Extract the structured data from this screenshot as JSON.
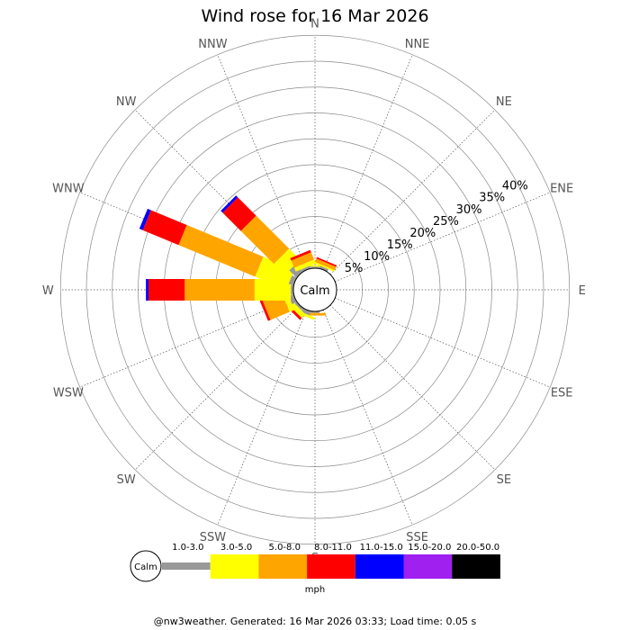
{
  "title": "Wind rose for 16 Mar 2026",
  "center_label": "Calm",
  "footer": "@nw3weather. Generated: 16 Mar 2026 03:33; Load time: 0.05 s",
  "units": "mph",
  "chart_data": {
    "type": "wind-rose",
    "title": "Wind rose for 16 Mar 2026",
    "directions": [
      "N",
      "NNE",
      "NE",
      "ENE",
      "E",
      "ESE",
      "SE",
      "SSE",
      "S",
      "SSW",
      "SW",
      "WSW",
      "W",
      "WNW",
      "NW",
      "NNW"
    ],
    "radial_ticks": [
      "5%",
      "10%",
      "15%",
      "20%",
      "25%",
      "30%",
      "35%",
      "40%"
    ],
    "radial_max_percent": 45,
    "speed_bins": [
      {
        "label": "1.0-3.0",
        "color": "#999999"
      },
      {
        "label": "3.0-5.0",
        "color": "#ffff00"
      },
      {
        "label": "5.0-8.0",
        "color": "#ffa500"
      },
      {
        "label": "8.0-11.0",
        "color": "#ff0000"
      },
      {
        "label": "11.0-15.0",
        "color": "#0000ff"
      },
      {
        "label": "15.0-20.0",
        "color": "#a020f0"
      },
      {
        "label": "20.0-50.0",
        "color": "#000000"
      }
    ],
    "series": [
      {
        "direction": "N",
        "values": [
          0.3,
          0.3,
          0.0,
          0.0,
          0.0,
          0.0,
          0.0
        ]
      },
      {
        "direction": "NNE",
        "values": [
          0.5,
          0.3,
          0.7,
          0.3,
          0.0,
          0.0,
          0.0
        ]
      },
      {
        "direction": "NE",
        "values": [
          0.0,
          0.0,
          0.0,
          0.0,
          0.0,
          0.0,
          0.0
        ]
      },
      {
        "direction": "ENE",
        "values": [
          0.0,
          0.0,
          0.0,
          0.0,
          0.0,
          0.0,
          0.0
        ]
      },
      {
        "direction": "E",
        "values": [
          0.0,
          0.0,
          0.0,
          0.0,
          0.0,
          0.0,
          0.0
        ]
      },
      {
        "direction": "ESE",
        "values": [
          0.0,
          0.0,
          0.0,
          0.0,
          0.0,
          0.0,
          0.0
        ]
      },
      {
        "direction": "SE",
        "values": [
          0.0,
          0.0,
          0.0,
          0.0,
          0.0,
          0.0,
          0.0
        ]
      },
      {
        "direction": "SSE",
        "values": [
          0.0,
          0.0,
          0.0,
          0.0,
          0.0,
          0.0,
          0.0
        ]
      },
      {
        "direction": "S",
        "values": [
          0.3,
          0.0,
          0.5,
          0.0,
          0.0,
          0.0,
          0.0
        ]
      },
      {
        "direction": "SSW",
        "values": [
          0.8,
          0.5,
          0.0,
          0.0,
          0.0,
          0.0,
          0.0
        ]
      },
      {
        "direction": "SW",
        "values": [
          0.5,
          1.0,
          0.0,
          0.5,
          0.0,
          0.0,
          0.0
        ]
      },
      {
        "direction": "WSW",
        "values": [
          1.0,
          1.0,
          4.0,
          0.5,
          0.0,
          0.0,
          0.0
        ]
      },
      {
        "direction": "W",
        "values": [
          0.5,
          7.0,
          13.5,
          7.0,
          0.5,
          0.0,
          0.0
        ]
      },
      {
        "direction": "WNW",
        "values": [
          1.0,
          6.5,
          16.0,
          7.5,
          0.7,
          0.0,
          0.0
        ]
      },
      {
        "direction": "NW",
        "values": [
          2.0,
          3.0,
          9.0,
          5.0,
          0.5,
          0.0,
          0.0
        ]
      },
      {
        "direction": "NNW",
        "values": [
          0.5,
          0.8,
          1.5,
          0.5,
          0.0,
          0.0,
          0.0
        ]
      }
    ]
  }
}
